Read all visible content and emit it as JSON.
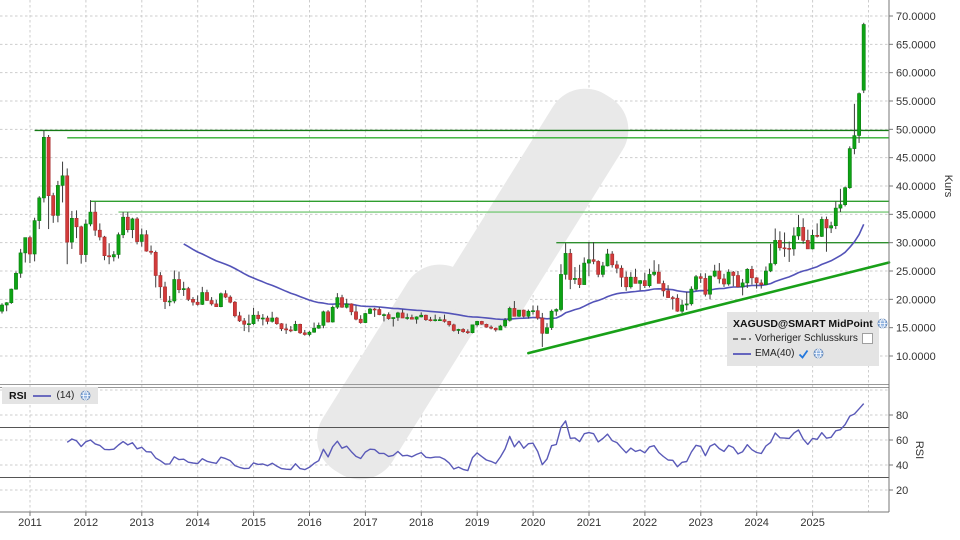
{
  "legend": {
    "title": "XAGUSD@SMART MidPoint",
    "prev_close_label": "Vorheriger Schlusskurs",
    "prev_close_enabled": false,
    "ema_label": "EMA(40)",
    "ema_enabled": true
  },
  "rsi_legend": {
    "name": "RSI",
    "params": "(14)"
  },
  "chart_data": {
    "type": "candlestick",
    "title": "XAGUSD@SMART MidPoint",
    "interval_note": "one bar per month, first bar mid-2010 (left of 2011 axis label)",
    "first_bar_x_year": 2010.5,
    "price_axis": {
      "label": "Kurs",
      "ticks": [
        "70.0000",
        "65.0000",
        "60.0000",
        "55.0000",
        "50.0000",
        "45.0000",
        "40.0000",
        "35.0000",
        "30.0000",
        "25.0000",
        "20.0000",
        "15.0000",
        "10.0000"
      ],
      "tick_values": [
        70,
        65,
        60,
        55,
        50,
        45,
        40,
        35,
        30,
        25,
        20,
        15,
        10
      ],
      "min": 5,
      "max": 72
    },
    "rsi_axis": {
      "label": "RSI",
      "ticks": [
        "80",
        "60",
        "40",
        "20"
      ],
      "tick_values": [
        80,
        60,
        40,
        20
      ],
      "overbought": 70,
      "oversold": 30
    },
    "x_axis": {
      "years": [
        "2011",
        "2012",
        "2013",
        "2014",
        "2015",
        "2016",
        "2017",
        "2018",
        "2019",
        "2020",
        "2021",
        "2022",
        "2023",
        "2024",
        "2025"
      ]
    },
    "indicators": {
      "ema_period": 40,
      "rsi_period": 14
    },
    "levels": [
      {
        "value": 49.8,
        "start_index": 7,
        "color": "#157a15"
      },
      {
        "value": 48.5,
        "start_index": 14,
        "color": "#2fae2f"
      },
      {
        "value": 37.3,
        "start_index": 19,
        "color": "#2f9e2f"
      },
      {
        "value": 35.4,
        "start_index": 25,
        "color": "#7ccb7c"
      },
      {
        "value": 30.0,
        "start_index": 119,
        "color": "#2e8f2e"
      }
    ],
    "trendline": {
      "start_index": 113,
      "start_value": 10.5,
      "end_value": 26.5
    },
    "colors": {
      "up": "#0da314",
      "up_border": "#0a7d10",
      "down": "#d23b3b",
      "down_border": "#a82e2e",
      "wick": "#3c3c3c",
      "ema": "#5353b8",
      "rsi": "#5a5ab8",
      "grid": "#cdcdcd",
      "axis": "#777777",
      "text": "#333333",
      "trend": "#18a018",
      "watermark": "#e9e9e9",
      "legend_bg": "#e4e4e4",
      "rsi_band": "#555555",
      "check": "#2277dd"
    },
    "ohlc": [
      [
        17.9,
        19.3,
        17.5,
        19.0
      ],
      [
        19.0,
        19.5,
        17.9,
        19.4
      ],
      [
        19.4,
        21.9,
        19.2,
        21.8
      ],
      [
        21.8,
        24.9,
        21.7,
        24.6
      ],
      [
        24.6,
        28.9,
        23.8,
        28.2
      ],
      [
        28.2,
        30.9,
        26.5,
        30.9
      ],
      [
        30.9,
        31.2,
        26.4,
        28.0
      ],
      [
        28.0,
        34.4,
        26.7,
        33.9
      ],
      [
        33.9,
        38.2,
        32.4,
        37.9
      ],
      [
        37.9,
        49.8,
        37.1,
        48.6
      ],
      [
        48.6,
        49.0,
        32.4,
        38.3
      ],
      [
        38.3,
        38.8,
        33.5,
        34.8
      ],
      [
        34.8,
        40.9,
        33.6,
        40.1
      ],
      [
        40.1,
        44.3,
        37.1,
        41.8
      ],
      [
        41.8,
        43.1,
        26.2,
        30.1
      ],
      [
        30.1,
        35.6,
        28.9,
        34.3
      ],
      [
        34.3,
        35.7,
        30.8,
        32.8
      ],
      [
        32.8,
        33.0,
        26.3,
        27.9
      ],
      [
        27.9,
        34.1,
        26.6,
        33.3
      ],
      [
        33.3,
        37.5,
        32.9,
        35.4
      ],
      [
        35.4,
        37.2,
        31.2,
        32.2
      ],
      [
        32.2,
        33.4,
        30.4,
        31.0
      ],
      [
        31.0,
        31.2,
        26.9,
        27.7
      ],
      [
        27.7,
        29.9,
        26.2,
        27.5
      ],
      [
        27.5,
        28.5,
        26.7,
        27.9
      ],
      [
        27.9,
        31.8,
        27.2,
        31.4
      ],
      [
        31.4,
        35.4,
        30.8,
        34.5
      ],
      [
        34.5,
        35.4,
        31.8,
        32.3
      ],
      [
        32.3,
        34.4,
        30.8,
        34.2
      ],
      [
        34.2,
        34.5,
        29.7,
        30.2
      ],
      [
        30.2,
        32.5,
        29.3,
        31.4
      ],
      [
        31.4,
        32.2,
        28.4,
        28.5
      ],
      [
        28.5,
        29.5,
        27.9,
        28.3
      ],
      [
        28.3,
        28.6,
        22.1,
        24.2
      ],
      [
        24.2,
        24.8,
        20.2,
        22.2
      ],
      [
        22.2,
        23.1,
        18.3,
        19.6
      ],
      [
        19.6,
        20.6,
        18.8,
        19.7
      ],
      [
        19.7,
        25.1,
        19.3,
        23.5
      ],
      [
        23.5,
        24.9,
        21.1,
        21.7
      ],
      [
        21.7,
        23.1,
        20.6,
        21.9
      ],
      [
        21.9,
        22.2,
        19.7,
        20.0
      ],
      [
        20.0,
        20.4,
        18.9,
        19.5
      ],
      [
        19.5,
        20.7,
        18.9,
        19.1
      ],
      [
        19.1,
        22.2,
        19.0,
        21.2
      ],
      [
        21.2,
        21.7,
        19.7,
        19.8
      ],
      [
        19.8,
        20.4,
        18.9,
        19.2
      ],
      [
        19.2,
        19.9,
        18.7,
        18.7
      ],
      [
        18.7,
        21.2,
        18.6,
        21.0
      ],
      [
        21.0,
        21.6,
        20.2,
        20.4
      ],
      [
        20.4,
        20.7,
        19.3,
        19.5
      ],
      [
        19.5,
        19.7,
        16.8,
        17.1
      ],
      [
        17.1,
        17.8,
        16.0,
        16.2
      ],
      [
        16.2,
        16.7,
        14.4,
        15.6
      ],
      [
        15.6,
        17.3,
        14.2,
        15.7
      ],
      [
        15.7,
        18.5,
        15.5,
        17.2
      ],
      [
        17.2,
        17.9,
        16.1,
        16.6
      ],
      [
        16.6,
        17.4,
        15.4,
        16.7
      ],
      [
        16.7,
        17.1,
        15.6,
        16.1
      ],
      [
        16.1,
        17.8,
        15.9,
        16.7
      ],
      [
        16.7,
        16.9,
        15.5,
        15.7
      ],
      [
        15.7,
        15.8,
        14.4,
        14.8
      ],
      [
        14.8,
        15.7,
        13.9,
        14.6
      ],
      [
        14.6,
        15.3,
        14.2,
        14.5
      ],
      [
        14.5,
        16.2,
        14.4,
        15.6
      ],
      [
        15.6,
        15.7,
        13.9,
        14.1
      ],
      [
        14.1,
        14.6,
        13.6,
        13.8
      ],
      [
        13.8,
        14.4,
        13.5,
        14.2
      ],
      [
        14.2,
        15.9,
        14.1,
        14.9
      ],
      [
        14.9,
        15.9,
        14.8,
        15.4
      ],
      [
        15.4,
        18.0,
        14.9,
        17.8
      ],
      [
        17.8,
        18.1,
        15.9,
        16.0
      ],
      [
        16.0,
        18.9,
        15.9,
        18.6
      ],
      [
        18.6,
        21.1,
        18.3,
        20.3
      ],
      [
        20.3,
        20.8,
        18.5,
        18.6
      ],
      [
        18.6,
        20.1,
        18.4,
        19.2
      ],
      [
        19.2,
        19.3,
        17.2,
        17.8
      ],
      [
        17.8,
        18.9,
        16.3,
        16.5
      ],
      [
        16.5,
        17.2,
        15.7,
        15.9
      ],
      [
        15.9,
        17.6,
        15.8,
        17.5
      ],
      [
        17.5,
        18.5,
        17.4,
        18.3
      ],
      [
        18.3,
        18.5,
        16.9,
        18.2
      ],
      [
        18.2,
        18.6,
        17.2,
        17.3
      ],
      [
        17.3,
        17.5,
        16.1,
        17.3
      ],
      [
        17.3,
        17.7,
        16.4,
        16.6
      ],
      [
        16.6,
        16.8,
        15.2,
        16.8
      ],
      [
        16.8,
        17.8,
        16.2,
        17.6
      ],
      [
        17.6,
        18.2,
        16.7,
        16.7
      ],
      [
        16.7,
        17.5,
        16.4,
        16.8
      ],
      [
        16.8,
        17.3,
        16.5,
        16.5
      ],
      [
        16.5,
        17.0,
        15.7,
        16.9
      ],
      [
        16.9,
        17.7,
        16.8,
        17.2
      ],
      [
        17.2,
        17.3,
        16.2,
        16.4
      ],
      [
        16.4,
        16.9,
        16.1,
        16.3
      ],
      [
        16.3,
        17.3,
        16.1,
        16.4
      ],
      [
        16.4,
        16.9,
        16.2,
        16.4
      ],
      [
        16.4,
        17.3,
        15.9,
        16.1
      ],
      [
        16.1,
        16.2,
        15.2,
        15.5
      ],
      [
        15.5,
        15.7,
        14.3,
        14.5
      ],
      [
        14.5,
        14.8,
        13.9,
        14.7
      ],
      [
        14.7,
        14.9,
        14.1,
        14.3
      ],
      [
        14.3,
        14.7,
        13.9,
        14.1
      ],
      [
        14.1,
        15.5,
        14.0,
        15.5
      ],
      [
        15.5,
        16.2,
        15.2,
        16.1
      ],
      [
        16.1,
        16.2,
        15.5,
        15.6
      ],
      [
        15.6,
        15.7,
        15.0,
        15.1
      ],
      [
        15.1,
        15.4,
        14.7,
        14.9
      ],
      [
        14.9,
        15.0,
        14.3,
        14.6
      ],
      [
        14.6,
        15.5,
        14.6,
        15.3
      ],
      [
        15.3,
        16.7,
        15.0,
        16.3
      ],
      [
        16.3,
        18.7,
        16.1,
        18.4
      ],
      [
        18.4,
        19.7,
        17.5,
        17.0
      ],
      [
        17.0,
        18.1,
        16.9,
        18.1
      ],
      [
        18.1,
        18.2,
        16.8,
        17.0
      ],
      [
        17.0,
        18.2,
        16.6,
        17.9
      ],
      [
        17.9,
        18.9,
        17.3,
        18.0
      ],
      [
        18.0,
        18.9,
        16.4,
        16.7
      ],
      [
        16.7,
        17.6,
        11.6,
        14.0
      ],
      [
        14.0,
        15.8,
        13.9,
        15.0
      ],
      [
        15.0,
        18.2,
        14.6,
        17.9
      ],
      [
        17.9,
        18.4,
        17.1,
        18.2
      ],
      [
        18.2,
        26.2,
        17.9,
        24.4
      ],
      [
        24.4,
        29.9,
        23.5,
        28.1
      ],
      [
        28.1,
        28.9,
        21.8,
        23.5
      ],
      [
        23.5,
        25.7,
        22.7,
        23.7
      ],
      [
        23.7,
        26.1,
        22.0,
        22.6
      ],
      [
        22.6,
        27.4,
        22.6,
        26.4
      ],
      [
        26.4,
        30.1,
        24.1,
        27.0
      ],
      [
        27.0,
        30.1,
        26.2,
        26.7
      ],
      [
        26.7,
        26.9,
        23.9,
        24.4
      ],
      [
        24.4,
        26.6,
        23.9,
        25.9
      ],
      [
        25.9,
        28.9,
        25.8,
        28.0
      ],
      [
        28.0,
        28.5,
        25.6,
        26.1
      ],
      [
        26.1,
        26.8,
        24.6,
        25.5
      ],
      [
        25.5,
        26.0,
        22.2,
        23.9
      ],
      [
        23.9,
        24.9,
        21.5,
        22.2
      ],
      [
        22.2,
        24.8,
        21.9,
        23.9
      ],
      [
        23.9,
        25.4,
        22.8,
        22.8
      ],
      [
        22.8,
        23.4,
        21.6,
        23.3
      ],
      [
        23.3,
        24.7,
        22.0,
        22.4
      ],
      [
        22.4,
        25.4,
        22.1,
        24.4
      ],
      [
        24.4,
        26.9,
        24.1,
        24.8
      ],
      [
        24.8,
        26.2,
        22.8,
        22.8
      ],
      [
        22.8,
        23.3,
        20.5,
        21.5
      ],
      [
        21.5,
        22.5,
        20.3,
        20.3
      ],
      [
        20.3,
        20.6,
        18.2,
        20.2
      ],
      [
        20.2,
        20.9,
        17.8,
        17.9
      ],
      [
        17.9,
        19.9,
        17.6,
        19.0
      ],
      [
        19.0,
        21.3,
        18.1,
        19.2
      ],
      [
        19.2,
        22.3,
        18.9,
        21.8
      ],
      [
        21.8,
        24.3,
        21.5,
        24.0
      ],
      [
        24.0,
        24.6,
        22.9,
        23.7
      ],
      [
        23.7,
        24.6,
        20.5,
        20.9
      ],
      [
        20.9,
        24.2,
        20.0,
        24.1
      ],
      [
        24.1,
        26.1,
        23.9,
        25.0
      ],
      [
        25.0,
        26.4,
        22.8,
        23.6
      ],
      [
        23.6,
        24.5,
        22.2,
        22.7
      ],
      [
        22.7,
        25.3,
        22.4,
        24.8
      ],
      [
        24.8,
        25.0,
        22.3,
        24.2
      ],
      [
        24.2,
        25.0,
        22.1,
        22.2
      ],
      [
        22.2,
        23.6,
        20.7,
        22.9
      ],
      [
        22.9,
        25.5,
        22.0,
        25.3
      ],
      [
        25.3,
        25.9,
        22.6,
        23.8
      ],
      [
        23.8,
        23.9,
        21.9,
        22.9
      ],
      [
        22.9,
        23.5,
        21.9,
        22.6
      ],
      [
        22.6,
        25.8,
        22.5,
        25.0
      ],
      [
        25.0,
        29.8,
        24.8,
        26.3
      ],
      [
        26.3,
        32.5,
        26.0,
        30.4
      ],
      [
        30.4,
        32.0,
        28.6,
        29.1
      ],
      [
        29.1,
        31.8,
        27.5,
        29.0
      ],
      [
        29.0,
        30.2,
        26.6,
        28.9
      ],
      [
        28.9,
        32.7,
        27.7,
        31.2
      ],
      [
        31.2,
        34.9,
        30.5,
        32.7
      ],
      [
        32.7,
        34.3,
        29.8,
        30.4
      ],
      [
        30.4,
        32.3,
        28.9,
        28.9
      ],
      [
        28.9,
        32.3,
        28.8,
        31.3
      ],
      [
        31.3,
        33.4,
        30.9,
        31.1
      ],
      [
        31.1,
        34.6,
        31.0,
        34.1
      ],
      [
        34.1,
        34.6,
        28.4,
        32.6
      ],
      [
        32.6,
        33.7,
        31.7,
        33.0
      ],
      [
        33.0,
        37.3,
        32.4,
        36.1
      ],
      [
        36.1,
        39.5,
        35.4,
        36.7
      ],
      [
        36.7,
        39.9,
        36.4,
        39.7
      ],
      [
        39.7,
        47.0,
        39.5,
        46.6
      ],
      [
        46.6,
        54.5,
        45.6,
        48.9
      ],
      [
        48.9,
        56.5,
        47.6,
        56.3
      ],
      [
        56.9,
        68.8,
        56.4,
        68.5
      ]
    ]
  }
}
